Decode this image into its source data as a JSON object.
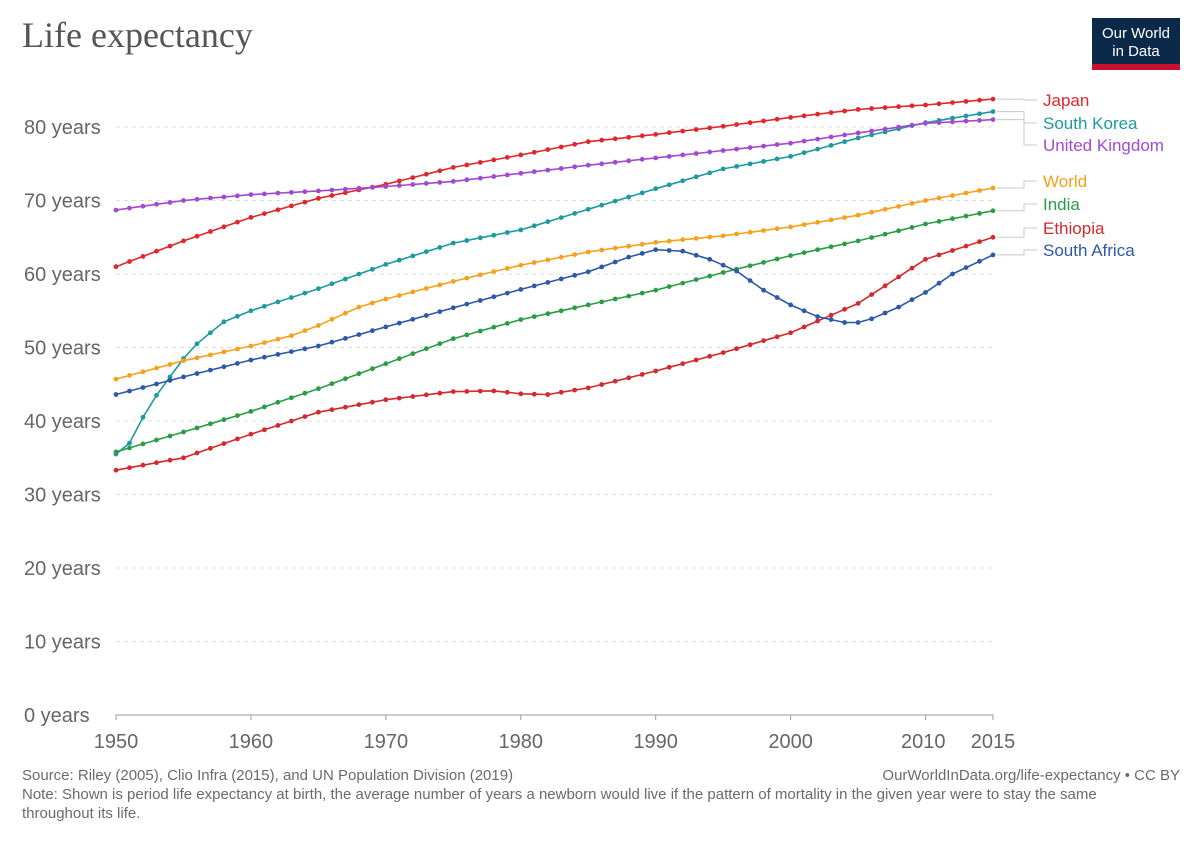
{
  "title": "Life expectancy",
  "logo": {
    "line1": "Our World",
    "line2": "in Data"
  },
  "footer": {
    "source": "Source: Riley (2005), Clio Infra (2015), and UN Population Division (2019)",
    "url": "OurWorldInData.org/life-expectancy • CC BY",
    "note": "Note: Shown is period life expectancy at birth, the average number of years a newborn would live if the pattern of mortality in the given year were to stay the same throughout its life."
  },
  "chart_data": {
    "type": "line",
    "title": "Life expectancy",
    "xlim": [
      1950,
      2015
    ],
    "ylim": [
      0,
      85
    ],
    "x_ticks": [
      1950,
      1960,
      1970,
      1980,
      1990,
      2000,
      2010,
      2015
    ],
    "y_ticks": [
      0,
      10,
      20,
      30,
      40,
      50,
      60,
      70,
      80
    ],
    "y_tick_labels": [
      "0 years",
      "10 years",
      "20 years",
      "30 years",
      "40 years",
      "50 years",
      "60 years",
      "70 years",
      "80 years"
    ],
    "grid": "horizontal dashed",
    "legend": "right, inline labels",
    "series": [
      {
        "name": "Japan",
        "color": "#e0272b",
        "points": [
          [
            1950,
            61
          ],
          [
            1955,
            64.5
          ],
          [
            1960,
            67.7
          ],
          [
            1965,
            70.3
          ],
          [
            1970,
            72.2
          ],
          [
            1975,
            74.5
          ],
          [
            1980,
            76.2
          ],
          [
            1985,
            78
          ],
          [
            1990,
            79
          ],
          [
            1995,
            80.1
          ],
          [
            2000,
            81.3
          ],
          [
            2005,
            82.4
          ],
          [
            2010,
            83
          ],
          [
            2015,
            83.8
          ]
        ]
      },
      {
        "name": "South Korea",
        "color": "#1d9a9e",
        "points": [
          [
            1950,
            35.5
          ],
          [
            1951,
            37
          ],
          [
            1952,
            40.5
          ],
          [
            1953,
            43.5
          ],
          [
            1954,
            46
          ],
          [
            1955,
            48.5
          ],
          [
            1956,
            50.5
          ],
          [
            1957,
            52
          ],
          [
            1958,
            53.5
          ],
          [
            1960,
            55
          ],
          [
            1965,
            58
          ],
          [
            1970,
            61.3
          ],
          [
            1975,
            64.2
          ],
          [
            1980,
            66
          ],
          [
            1985,
            68.8
          ],
          [
            1990,
            71.6
          ],
          [
            1995,
            74.3
          ],
          [
            2000,
            76
          ],
          [
            2005,
            78.5
          ],
          [
            2010,
            80.6
          ],
          [
            2015,
            82.1
          ]
        ]
      },
      {
        "name": "United Kingdom",
        "color": "#a14ad0",
        "points": [
          [
            1950,
            68.7
          ],
          [
            1955,
            70
          ],
          [
            1960,
            70.8
          ],
          [
            1965,
            71.3
          ],
          [
            1970,
            71.9
          ],
          [
            1975,
            72.6
          ],
          [
            1980,
            73.7
          ],
          [
            1985,
            74.8
          ],
          [
            1990,
            75.8
          ],
          [
            1995,
            76.8
          ],
          [
            2000,
            77.8
          ],
          [
            2005,
            79.2
          ],
          [
            2010,
            80.5
          ],
          [
            2015,
            81
          ]
        ]
      },
      {
        "name": "World",
        "color": "#f6a01c",
        "points": [
          [
            1950,
            45.7
          ],
          [
            1955,
            48.2
          ],
          [
            1960,
            50.2
          ],
          [
            1963,
            51.6
          ],
          [
            1965,
            53
          ],
          [
            1968,
            55.5
          ],
          [
            1970,
            56.6
          ],
          [
            1975,
            59
          ],
          [
            1980,
            61.2
          ],
          [
            1985,
            63
          ],
          [
            1990,
            64.3
          ],
          [
            1995,
            65.2
          ],
          [
            2000,
            66.4
          ],
          [
            2005,
            68
          ],
          [
            2010,
            70
          ],
          [
            2015,
            71.7
          ]
        ]
      },
      {
        "name": "India",
        "color": "#2a9c46",
        "points": [
          [
            1950,
            35.8
          ],
          [
            1955,
            38.5
          ],
          [
            1960,
            41.3
          ],
          [
            1965,
            44.4
          ],
          [
            1970,
            47.8
          ],
          [
            1975,
            51.2
          ],
          [
            1980,
            53.8
          ],
          [
            1985,
            55.8
          ],
          [
            1990,
            57.8
          ],
          [
            1995,
            60.2
          ],
          [
            2000,
            62.5
          ],
          [
            2005,
            64.5
          ],
          [
            2010,
            66.8
          ],
          [
            2015,
            68.6
          ]
        ]
      },
      {
        "name": "Ethiopia",
        "color": "#d12a2f",
        "points": [
          [
            1950,
            33.3
          ],
          [
            1955,
            35
          ],
          [
            1960,
            38.2
          ],
          [
            1965,
            41.2
          ],
          [
            1970,
            42.9
          ],
          [
            1975,
            44
          ],
          [
            1978,
            44.1
          ],
          [
            1980,
            43.7
          ],
          [
            1982,
            43.6
          ],
          [
            1985,
            44.5
          ],
          [
            1990,
            46.8
          ],
          [
            1995,
            49.3
          ],
          [
            2000,
            52
          ],
          [
            2003,
            54.4
          ],
          [
            2005,
            56
          ],
          [
            2010,
            62
          ],
          [
            2015,
            65
          ]
        ]
      },
      {
        "name": "South Africa",
        "color": "#2e59a8",
        "points": [
          [
            1950,
            43.6
          ],
          [
            1955,
            46
          ],
          [
            1960,
            48.3
          ],
          [
            1965,
            50.2
          ],
          [
            1970,
            52.8
          ],
          [
            1975,
            55.4
          ],
          [
            1980,
            57.9
          ],
          [
            1985,
            60.3
          ],
          [
            1988,
            62.3
          ],
          [
            1990,
            63.3
          ],
          [
            1992,
            63.1
          ],
          [
            1994,
            62
          ],
          [
            1996,
            60.4
          ],
          [
            1998,
            57.8
          ],
          [
            2000,
            55.8
          ],
          [
            2002,
            54.2
          ],
          [
            2004,
            53.4
          ],
          [
            2005,
            53.4
          ],
          [
            2006,
            53.9
          ],
          [
            2008,
            55.5
          ],
          [
            2010,
            57.5
          ],
          [
            2012,
            60
          ],
          [
            2015,
            62.6
          ]
        ]
      }
    ]
  }
}
